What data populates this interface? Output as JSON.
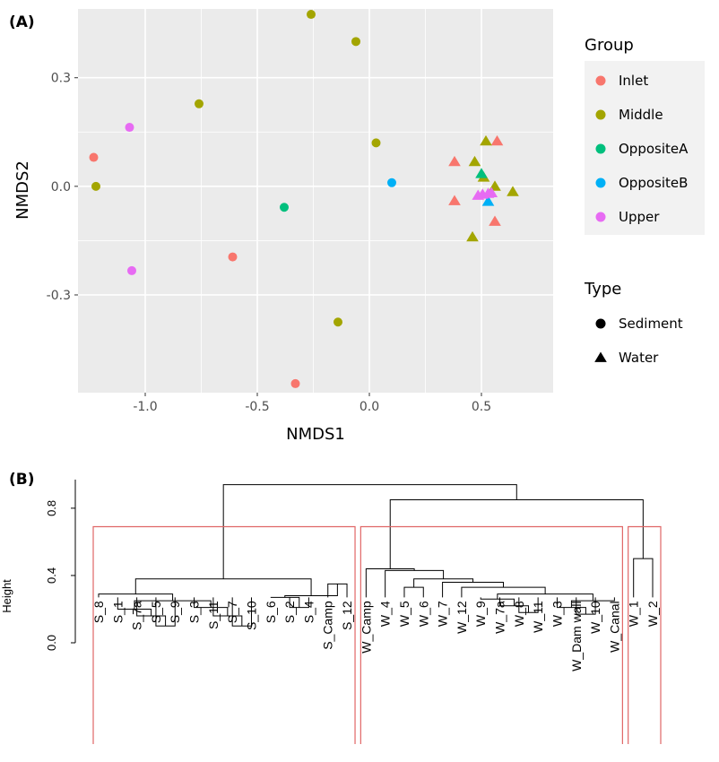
{
  "chart_data": [
    {
      "panel_label": "(A)",
      "type": "scatter",
      "xlabel": "NMDS1",
      "ylabel": "NMDS2",
      "xlim": [
        -1.3,
        0.82
      ],
      "ylim": [
        -0.57,
        0.49
      ],
      "xticks": [
        -1.0,
        -0.5,
        0.0,
        0.5
      ],
      "xtick_labels": [
        "-1.0",
        "-0.5",
        "0.0",
        "0.5"
      ],
      "yticks": [
        -0.3,
        0.0,
        0.3
      ],
      "ytick_labels": [
        "-0.3",
        "0.0",
        "0.3"
      ],
      "grid": true,
      "legend_placement": "right",
      "legend": {
        "color_title": "Group",
        "groups": [
          {
            "name": "Inlet",
            "color": "#F8766D"
          },
          {
            "name": "Middle",
            "color": "#A3A500"
          },
          {
            "name": "OppositeA",
            "color": "#00BF7D"
          },
          {
            "name": "OppositeB",
            "color": "#00B0F6"
          },
          {
            "name": "Upper",
            "color": "#E76BF3"
          }
        ],
        "shape_title": "Type",
        "types": [
          {
            "name": "Sediment",
            "shape": "circle"
          },
          {
            "name": "Water",
            "shape": "triangle"
          }
        ]
      },
      "points": [
        {
          "x": -1.23,
          "y": 0.08,
          "group": "Inlet",
          "type": "Sediment"
        },
        {
          "x": -0.61,
          "y": -0.195,
          "group": "Inlet",
          "type": "Sediment"
        },
        {
          "x": -0.33,
          "y": -0.545,
          "group": "Inlet",
          "type": "Sediment"
        },
        {
          "x": -1.22,
          "y": 0.0,
          "group": "Middle",
          "type": "Sediment"
        },
        {
          "x": -0.76,
          "y": 0.228,
          "group": "Middle",
          "type": "Sediment"
        },
        {
          "x": -0.26,
          "y": 0.475,
          "group": "Middle",
          "type": "Sediment"
        },
        {
          "x": -0.06,
          "y": 0.4,
          "group": "Middle",
          "type": "Sediment"
        },
        {
          "x": 0.03,
          "y": 0.12,
          "group": "Middle",
          "type": "Sediment"
        },
        {
          "x": -0.14,
          "y": -0.375,
          "group": "Middle",
          "type": "Sediment"
        },
        {
          "x": -0.38,
          "y": -0.058,
          "group": "OppositeA",
          "type": "Sediment"
        },
        {
          "x": 0.1,
          "y": 0.01,
          "group": "OppositeB",
          "type": "Sediment"
        },
        {
          "x": -1.07,
          "y": 0.163,
          "group": "Upper",
          "type": "Sediment"
        },
        {
          "x": -1.06,
          "y": -0.233,
          "group": "Upper",
          "type": "Sediment"
        },
        {
          "x": 0.38,
          "y": 0.068,
          "group": "Inlet",
          "type": "Water"
        },
        {
          "x": 0.38,
          "y": -0.04,
          "group": "Inlet",
          "type": "Water"
        },
        {
          "x": 0.57,
          "y": 0.125,
          "group": "Inlet",
          "type": "Water"
        },
        {
          "x": 0.56,
          "y": -0.097,
          "group": "Inlet",
          "type": "Water"
        },
        {
          "x": 0.47,
          "y": 0.068,
          "group": "Middle",
          "type": "Water"
        },
        {
          "x": 0.52,
          "y": 0.125,
          "group": "Middle",
          "type": "Water"
        },
        {
          "x": 0.51,
          "y": 0.025,
          "group": "Middle",
          "type": "Water"
        },
        {
          "x": 0.56,
          "y": 0.0,
          "group": "Middle",
          "type": "Water"
        },
        {
          "x": 0.64,
          "y": -0.015,
          "group": "Middle",
          "type": "Water"
        },
        {
          "x": 0.46,
          "y": -0.14,
          "group": "Middle",
          "type": "Water"
        },
        {
          "x": 0.5,
          "y": 0.035,
          "group": "OppositeA",
          "type": "Water"
        },
        {
          "x": 0.53,
          "y": -0.042,
          "group": "OppositeB",
          "type": "Water"
        },
        {
          "x": 0.485,
          "y": -0.025,
          "group": "Upper",
          "type": "Water"
        },
        {
          "x": 0.505,
          "y": -0.022,
          "group": "Upper",
          "type": "Water"
        },
        {
          "x": 0.53,
          "y": -0.02,
          "group": "Upper",
          "type": "Water"
        },
        {
          "x": 0.545,
          "y": -0.018,
          "group": "Upper",
          "type": "Water"
        }
      ]
    },
    {
      "panel_label": "(B)",
      "type": "dendrogram",
      "ylabel": "Height",
      "ylim": [
        0.0,
        0.97
      ],
      "yticks": [
        0.0,
        0.4,
        0.8
      ],
      "ytick_labels": [
        "0.0",
        "0.4",
        "0.8"
      ],
      "leaves": [
        "S_8",
        "S_1",
        "S_7a",
        "S_5",
        "S_9",
        "S_3",
        "S_11",
        "S_7",
        "S_10",
        "S_6",
        "S_2",
        "S_4",
        "S_Camp",
        "S_12",
        "W_Camp",
        "W_4",
        "W_5",
        "W_6",
        "W_7",
        "W_12",
        "W_9",
        "W_7a",
        "W_8",
        "W_11",
        "W_3",
        "W_Dam wall",
        "W_10",
        "W_Canal",
        "W_1",
        "W_2"
      ],
      "merges": [
        {
          "a": "L3",
          "b": "L4",
          "h": 0.1
        },
        {
          "a": "L2",
          "b": "M0",
          "h": 0.16
        },
        {
          "a": "L1",
          "b": "M1",
          "h": 0.2
        },
        {
          "a": "L7",
          "b": "L8",
          "h": 0.1
        },
        {
          "a": "L6",
          "b": "M3",
          "h": 0.16
        },
        {
          "a": "L5",
          "b": "M4",
          "h": 0.21
        },
        {
          "a": "M2",
          "b": "M5",
          "h": 0.25
        },
        {
          "a": "L0",
          "b": "M6",
          "h": 0.29
        },
        {
          "a": "L10",
          "b": "L11",
          "h": 0.21
        },
        {
          "a": "L9",
          "b": "M8",
          "h": 0.27
        },
        {
          "a": "L12",
          "b": "L13",
          "h": 0.35
        },
        {
          "a": "M9",
          "b": "M10",
          "h": 0.28
        },
        {
          "a": "M7",
          "b": "M11",
          "h": 0.38
        },
        {
          "a": "L16",
          "b": "L17",
          "h": 0.33
        },
        {
          "a": "L22",
          "b": "L23",
          "h": 0.18
        },
        {
          "a": "L21",
          "b": "M14",
          "h": 0.22
        },
        {
          "a": "L20",
          "b": "M15",
          "h": 0.26
        },
        {
          "a": "L25",
          "b": "L26",
          "h": 0.17
        },
        {
          "a": "L24",
          "b": "M17",
          "h": 0.21
        },
        {
          "a": "M18",
          "b": "L27",
          "h": 0.25
        },
        {
          "a": "M16",
          "b": "M19",
          "h": 0.29
        },
        {
          "a": "L19",
          "b": "M20",
          "h": 0.33
        },
        {
          "a": "L18",
          "b": "M21",
          "h": 0.36
        },
        {
          "a": "M13",
          "b": "M22",
          "h": 0.38
        },
        {
          "a": "L15",
          "b": "M23",
          "h": 0.43
        },
        {
          "a": "L14",
          "b": "M24",
          "h": 0.44
        },
        {
          "a": "L28",
          "b": "L29",
          "h": 0.5
        },
        {
          "a": "M25",
          "b": "M26",
          "h": 0.85
        },
        {
          "a": "M12",
          "b": "M27",
          "h": 0.94
        }
      ],
      "cluster_boxes": [
        {
          "from": "S_8",
          "to": "S_12",
          "color": "#E06666"
        },
        {
          "from": "W_Camp",
          "to": "W_Canal",
          "color": "#E06666"
        },
        {
          "from": "W_1",
          "to": "W_2",
          "color": "#E06666"
        }
      ]
    }
  ]
}
